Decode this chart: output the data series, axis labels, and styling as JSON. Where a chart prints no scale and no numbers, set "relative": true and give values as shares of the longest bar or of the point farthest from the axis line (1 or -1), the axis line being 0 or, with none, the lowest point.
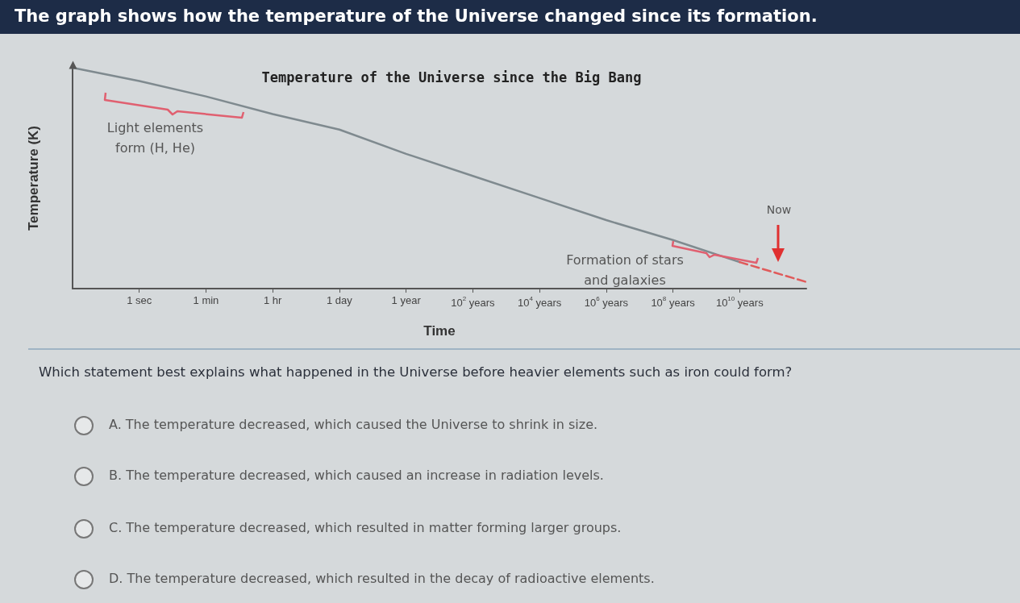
{
  "chart_data": {
    "type": "line",
    "title": "Temperature of the Universe since the Big Bang",
    "xlabel": "Time",
    "ylabel": "Temperature (K)",
    "relative": true,
    "categories": [
      null,
      "1 sec",
      "1 min",
      "1 hr",
      "1 day",
      "1 year",
      "10$^{2}$ years",
      "10$^{4}$ years",
      "10$^{6}$ years",
      "10$^{8}$ years",
      "10$^{10}$ years",
      null
    ],
    "series": [
      {
        "color": "#7f8a8f",
        "values": [
          1.0,
          0.94,
          0.87,
          0.79,
          0.72,
          0.61,
          0.51,
          0.41,
          0.31,
          0.22,
          0.12,
          null
        ]
      },
      {
        "color": "#e05a5a",
        "line_style": "dashed",
        "values": [
          null,
          null,
          null,
          null,
          null,
          null,
          null,
          null,
          null,
          null,
          0.12,
          0.03
        ]
      }
    ],
    "marker": "none",
    "grid": false,
    "annotations": [
      "The graph shows how the temperature of the Universe changed since its formation.",
      "Light elements form (H, He)",
      "Formation of stars and galaxies",
      "Now",
      "Which statement best explains what happened in the Universe before heavier elements such as iron could form?",
      "A.  The temperature decreased, which caused the Universe to shrink in size.",
      "B.  The temperature decreased, which caused an increase in radiation levels.",
      "C.  The temperature decreased, which resulted in matter forming larger groups.",
      "D.  The temperature decreased, which resulted in the decay of radioactive elements."
    ]
  }
}
